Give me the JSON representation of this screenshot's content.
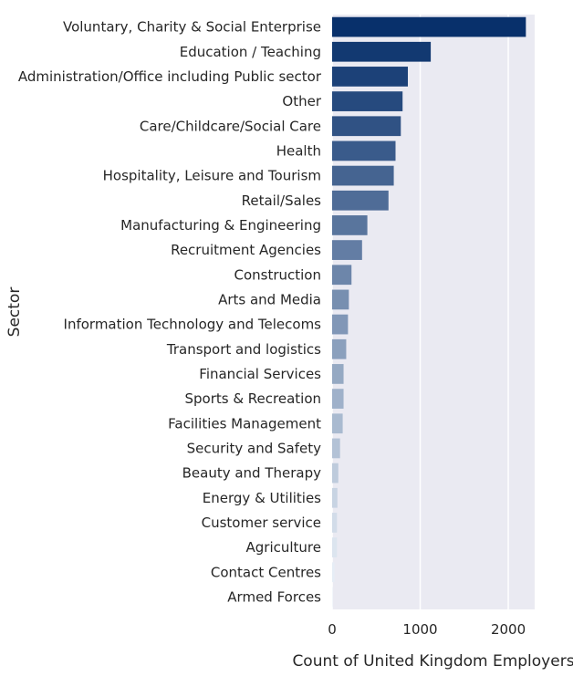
{
  "chart_data": {
    "type": "bar",
    "orientation": "horizontal",
    "xlabel": "Count of United Kingdom Employers",
    "ylabel": "Sector",
    "xlim": [
      0,
      2300
    ],
    "xticks": [
      0,
      1000,
      2000
    ],
    "grid": true,
    "color_scale": "Blues_r",
    "categories": [
      "Voluntary, Charity & Social Enterprise",
      "Education / Teaching",
      "Administration/Office including Public sector",
      "Other",
      "Care/Childcare/Social Care",
      "Health",
      "Hospitality, Leisure and Tourism",
      "Retail/Sales",
      "Manufacturing & Engineering",
      "Recruitment Agencies",
      "Construction",
      "Arts and Media",
      "Information Technology and Telecoms",
      "Transport and logistics",
      "Financial Services",
      "Sports & Recreation",
      "Facilities Management",
      "Security and Safety",
      "Beauty and Therapy",
      "Energy & Utilities",
      "Customer service",
      "Agriculture",
      "Contact Centres",
      "Armed Forces"
    ],
    "values": [
      2200,
      1120,
      860,
      800,
      780,
      720,
      700,
      640,
      400,
      340,
      220,
      190,
      180,
      160,
      130,
      130,
      120,
      90,
      70,
      60,
      55,
      55,
      25,
      5
    ]
  }
}
